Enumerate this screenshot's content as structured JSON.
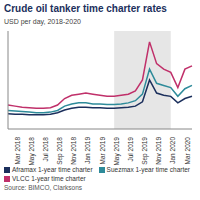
{
  "chart_data": {
    "type": "line",
    "title": "Crude oil tanker time charter rates",
    "subtitle": "USD per day, 2018-2020",
    "source": "Source: BIMCO, Clarksons",
    "categories": [
      null,
      "Mar 2018",
      null,
      "May 2018",
      null,
      "Jul 2018",
      null,
      "Sep 2018",
      null,
      "Nov 2018",
      null,
      "Jan 2019",
      null,
      "Mar 2019",
      null,
      "May 2019",
      null,
      "Jul 2019",
      null,
      "Sep 2019",
      null,
      "Nov 2019",
      null,
      "Jan 2020",
      null,
      "Mar 2020",
      null
    ],
    "series": [
      {
        "name": "Aframax 1-year time charter",
        "color": "#1b2f5c",
        "values": [
          14000,
          13500,
          13500,
          13000,
          13000,
          13000,
          13500,
          15000,
          17500,
          19000,
          20000,
          20000,
          19500,
          19500,
          19000,
          19000,
          19500,
          20000,
          21000,
          25000,
          45000,
          33000,
          31000,
          30000,
          24000,
          28000,
          30000
        ]
      },
      {
        "name": "Suezmax 1-year time charter",
        "color": "#2e8b9a",
        "values": [
          17000,
          16500,
          16000,
          15500,
          15000,
          15000,
          15500,
          17000,
          21000,
          23000,
          24000,
          24000,
          23000,
          23000,
          22500,
          22500,
          23000,
          24000,
          26000,
          32000,
          55000,
          42000,
          40000,
          38000,
          30000,
          37000,
          40000
        ]
      },
      {
        "name": "VLCC 1-year time charter",
        "color": "#c0306a",
        "values": [
          22000,
          21000,
          20000,
          19500,
          19000,
          19000,
          19500,
          22000,
          28000,
          31000,
          32000,
          33000,
          32000,
          31000,
          30000,
          30000,
          31000,
          32000,
          35000,
          45000,
          80000,
          60000,
          55000,
          52000,
          38000,
          55000,
          58000
        ]
      }
    ],
    "highlight": [
      "May 2019",
      "Jan 2020"
    ],
    "ylim": [
      0,
      90000
    ],
    "yticks": [
      0,
      30000,
      60000,
      90000
    ],
    "grid": false,
    "tick_labels": "x"
  }
}
